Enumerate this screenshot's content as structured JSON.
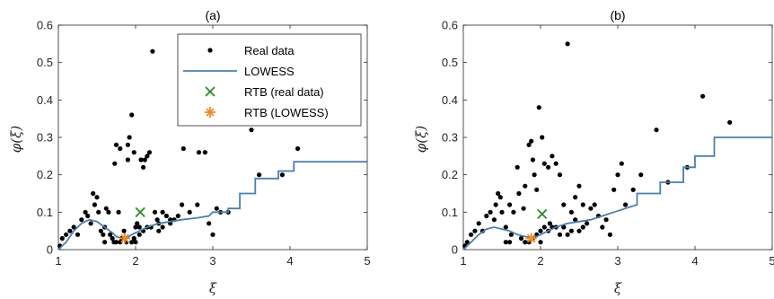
{
  "chart_data": [
    {
      "type": "scatter",
      "title": "(a)",
      "xlabel": "ξ",
      "ylabel": "φ(ξ)",
      "xlim": [
        1,
        5
      ],
      "ylim": [
        0,
        0.6
      ],
      "x_ticks": [
        "1",
        "2",
        "3",
        "4",
        "5"
      ],
      "y_ticks": [
        "0",
        "0.1",
        "0.2",
        "0.3",
        "0.4",
        "0.5",
        "0.6"
      ],
      "grid": false,
      "legend_position": "top-right",
      "legend": [
        "Real data",
        "LOWESS",
        "RTB (real data)",
        "RTB (LOWESS)"
      ],
      "series": [
        {
          "name": "Real data",
          "kind": "scatter",
          "color": "#000000",
          "points": [
            [
              1.02,
              0.01
            ],
            [
              1.05,
              0.03
            ],
            [
              1.1,
              0.04
            ],
            [
              1.15,
              0.05
            ],
            [
              1.2,
              0.06
            ],
            [
              1.25,
              0.04
            ],
            [
              1.3,
              0.08
            ],
            [
              1.35,
              0.1
            ],
            [
              1.38,
              0.09
            ],
            [
              1.42,
              0.07
            ],
            [
              1.45,
              0.15
            ],
            [
              1.47,
              0.12
            ],
            [
              1.5,
              0.14
            ],
            [
              1.52,
              0.1
            ],
            [
              1.55,
              0.05
            ],
            [
              1.58,
              0.04
            ],
            [
              1.6,
              0.06
            ],
            [
              1.62,
              0.11
            ],
            [
              1.65,
              0.1
            ],
            [
              1.67,
              0.04
            ],
            [
              1.7,
              0.03
            ],
            [
              1.72,
              0.02
            ],
            [
              1.75,
              0.02
            ],
            [
              1.78,
              0.1
            ],
            [
              1.75,
              0.28
            ],
            [
              1.8,
              0.27
            ],
            [
              1.73,
              0.23
            ],
            [
              1.82,
              0.03
            ],
            [
              1.85,
              0.05
            ],
            [
              1.88,
              0.02
            ],
            [
              1.9,
              0.24
            ],
            [
              1.9,
              0.28
            ],
            [
              1.92,
              0.3
            ],
            [
              1.95,
              0.36
            ],
            [
              1.98,
              0.26
            ],
            [
              1.98,
              0.03
            ],
            [
              2.02,
              0.07
            ],
            [
              2.05,
              0.06
            ],
            [
              2.07,
              0.24
            ],
            [
              2.1,
              0.22
            ],
            [
              2.12,
              0.24
            ],
            [
              2.15,
              0.25
            ],
            [
              2.18,
              0.26
            ],
            [
              2.22,
              0.53
            ],
            [
              2.25,
              0.1
            ],
            [
              2.2,
              0.06
            ],
            [
              2.28,
              0.08
            ],
            [
              2.3,
              0.07
            ],
            [
              2.35,
              0.1
            ],
            [
              2.4,
              0.09
            ],
            [
              2.45,
              0.07
            ],
            [
              2.5,
              0.08
            ],
            [
              2.55,
              0.09
            ],
            [
              2.6,
              0.12
            ],
            [
              2.62,
              0.27
            ],
            [
              2.7,
              0.1
            ],
            [
              2.8,
              0.12
            ],
            [
              2.82,
              0.26
            ],
            [
              2.9,
              0.26
            ],
            [
              2.95,
              0.07
            ],
            [
              3.0,
              0.04
            ],
            [
              3.05,
              0.11
            ],
            [
              3.1,
              0.1
            ],
            [
              3.2,
              0.1
            ],
            [
              3.5,
              0.32
            ],
            [
              3.6,
              0.2
            ],
            [
              3.9,
              0.2
            ],
            [
              4.1,
              0.27
            ],
            [
              1.6,
              0.02
            ],
            [
              1.95,
              0.02
            ],
            [
              2.0,
              0.02
            ],
            [
              2.05,
              0.04
            ],
            [
              2.1,
              0.05
            ],
            [
              2.15,
              0.06
            ],
            [
              2.3,
              0.05
            ],
            [
              2.35,
              0.06
            ],
            [
              2.45,
              0.08
            ],
            [
              1.85,
              0.03
            ],
            [
              1.8,
              0.02
            ],
            [
              2.0,
              0.06
            ]
          ]
        },
        {
          "name": "LOWESS",
          "kind": "line",
          "color": "#4a7fb0",
          "points": [
            [
              1.0,
              0.0
            ],
            [
              1.1,
              0.02
            ],
            [
              1.2,
              0.05
            ],
            [
              1.3,
              0.07
            ],
            [
              1.4,
              0.08
            ],
            [
              1.5,
              0.075
            ],
            [
              1.6,
              0.06
            ],
            [
              1.7,
              0.045
            ],
            [
              1.75,
              0.035
            ],
            [
              1.82,
              0.03
            ],
            [
              1.88,
              0.03
            ],
            [
              1.95,
              0.04
            ],
            [
              2.05,
              0.05
            ],
            [
              2.15,
              0.06
            ],
            [
              2.3,
              0.07
            ],
            [
              2.45,
              0.075
            ],
            [
              2.6,
              0.08
            ],
            [
              2.8,
              0.085
            ],
            [
              2.95,
              0.09
            ],
            [
              3.0,
              0.1
            ],
            [
              3.2,
              0.1
            ],
            [
              3.2,
              0.11
            ],
            [
              3.35,
              0.11
            ],
            [
              3.35,
              0.15
            ],
            [
              3.55,
              0.15
            ],
            [
              3.55,
              0.19
            ],
            [
              3.85,
              0.19
            ],
            [
              3.85,
              0.21
            ],
            [
              4.05,
              0.21
            ],
            [
              4.05,
              0.235
            ],
            [
              5.0,
              0.235
            ]
          ]
        },
        {
          "name": "RTB (real data)",
          "kind": "marker-x",
          "color": "#1e8f1e",
          "points": [
            [
              2.06,
              0.1
            ]
          ]
        },
        {
          "name": "RTB (LOWESS)",
          "kind": "marker-star",
          "color": "#f28c1e",
          "points": [
            [
              1.86,
              0.03
            ]
          ]
        }
      ]
    },
    {
      "type": "scatter",
      "title": "(b)",
      "xlabel": "ξ",
      "ylabel": "φ(ξ)",
      "xlim": [
        1,
        5
      ],
      "ylim": [
        0,
        0.6
      ],
      "x_ticks": [
        "1",
        "2",
        "3",
        "4",
        "5"
      ],
      "y_ticks": [
        "0",
        "0.1",
        "0.2",
        "0.3",
        "0.4",
        "0.5",
        "0.6"
      ],
      "grid": false,
      "series": [
        {
          "name": "Real data",
          "kind": "scatter",
          "color": "#000000",
          "points": [
            [
              1.02,
              0.01
            ],
            [
              1.05,
              0.02
            ],
            [
              1.1,
              0.04
            ],
            [
              1.15,
              0.05
            ],
            [
              1.2,
              0.07
            ],
            [
              1.25,
              0.05
            ],
            [
              1.3,
              0.09
            ],
            [
              1.35,
              0.1
            ],
            [
              1.4,
              0.08
            ],
            [
              1.42,
              0.12
            ],
            [
              1.45,
              0.15
            ],
            [
              1.48,
              0.14
            ],
            [
              1.5,
              0.1
            ],
            [
              1.55,
              0.06
            ],
            [
              1.6,
              0.12
            ],
            [
              1.62,
              0.04
            ],
            [
              1.65,
              0.1
            ],
            [
              1.7,
              0.22
            ],
            [
              1.72,
              0.15
            ],
            [
              1.75,
              0.03
            ],
            [
              1.78,
              0.11
            ],
            [
              1.8,
              0.17
            ],
            [
              1.85,
              0.28
            ],
            [
              1.88,
              0.29
            ],
            [
              1.9,
              0.24
            ],
            [
              1.92,
              0.2
            ],
            [
              1.95,
              0.16
            ],
            [
              1.98,
              0.38
            ],
            [
              2.0,
              0.05
            ],
            [
              2.02,
              0.3
            ],
            [
              2.05,
              0.23
            ],
            [
              2.1,
              0.22
            ],
            [
              2.15,
              0.25
            ],
            [
              2.2,
              0.23
            ],
            [
              2.25,
              0.2
            ],
            [
              2.3,
              0.12
            ],
            [
              2.35,
              0.55
            ],
            [
              2.4,
              0.1
            ],
            [
              2.45,
              0.08
            ],
            [
              2.5,
              0.17
            ],
            [
              2.55,
              0.12
            ],
            [
              2.6,
              0.07
            ],
            [
              2.65,
              0.11
            ],
            [
              2.7,
              0.12
            ],
            [
              2.75,
              0.09
            ],
            [
              2.8,
              0.06
            ],
            [
              2.85,
              0.08
            ],
            [
              2.9,
              0.04
            ],
            [
              2.95,
              0.16
            ],
            [
              3.0,
              0.2
            ],
            [
              3.05,
              0.23
            ],
            [
              3.1,
              0.12
            ],
            [
              3.2,
              0.16
            ],
            [
              3.3,
              0.2
            ],
            [
              3.5,
              0.32
            ],
            [
              3.65,
              0.18
            ],
            [
              3.9,
              0.22
            ],
            [
              4.1,
              0.41
            ],
            [
              4.45,
              0.34
            ],
            [
              1.55,
              0.02
            ],
            [
              1.6,
              0.02
            ],
            [
              1.8,
              0.02
            ],
            [
              1.9,
              0.03
            ],
            [
              2.0,
              0.02
            ],
            [
              2.05,
              0.06
            ],
            [
              2.1,
              0.05
            ],
            [
              2.15,
              0.06
            ],
            [
              2.2,
              0.06
            ],
            [
              2.3,
              0.06
            ],
            [
              2.4,
              0.05
            ],
            [
              2.5,
              0.05
            ],
            [
              1.85,
              0.02
            ],
            [
              1.95,
              0.04
            ],
            [
              2.25,
              0.04
            ],
            [
              2.12,
              0.07
            ],
            [
              2.45,
              0.14
            ],
            [
              2.55,
              0.06
            ],
            [
              2.35,
              0.04
            ]
          ]
        },
        {
          "name": "LOWESS",
          "kind": "line",
          "color": "#4a7fb0",
          "points": [
            [
              1.0,
              0.0
            ],
            [
              1.1,
              0.02
            ],
            [
              1.2,
              0.04
            ],
            [
              1.3,
              0.055
            ],
            [
              1.4,
              0.06
            ],
            [
              1.5,
              0.055
            ],
            [
              1.6,
              0.05
            ],
            [
              1.7,
              0.04
            ],
            [
              1.8,
              0.035
            ],
            [
              1.9,
              0.03
            ],
            [
              2.0,
              0.04
            ],
            [
              2.1,
              0.05
            ],
            [
              2.2,
              0.06
            ],
            [
              2.35,
              0.07
            ],
            [
              2.5,
              0.075
            ],
            [
              2.65,
              0.08
            ],
            [
              2.8,
              0.09
            ],
            [
              2.95,
              0.1
            ],
            [
              3.1,
              0.11
            ],
            [
              3.25,
              0.12
            ],
            [
              3.25,
              0.15
            ],
            [
              3.55,
              0.15
            ],
            [
              3.55,
              0.18
            ],
            [
              3.85,
              0.18
            ],
            [
              3.85,
              0.22
            ],
            [
              4.0,
              0.22
            ],
            [
              4.0,
              0.25
            ],
            [
              4.25,
              0.25
            ],
            [
              4.25,
              0.3
            ],
            [
              5.0,
              0.3
            ]
          ]
        },
        {
          "name": "RTB (real data)",
          "kind": "marker-x",
          "color": "#1e8f1e",
          "points": [
            [
              2.02,
              0.095
            ]
          ]
        },
        {
          "name": "RTB (LOWESS)",
          "kind": "marker-star",
          "color": "#f28c1e",
          "points": [
            [
              1.88,
              0.03
            ]
          ]
        }
      ]
    }
  ]
}
